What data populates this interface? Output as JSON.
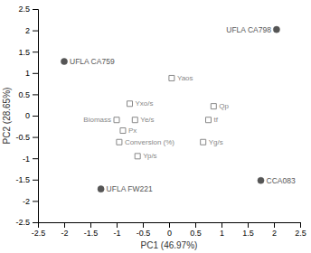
{
  "chart_data": {
    "type": "scatter",
    "xlabel": "PC1 (46.97%)",
    "ylabel": "PC2 (28.65%)",
    "xlim": [
      -2.5,
      2.5
    ],
    "ylim": [
      -2.5,
      2.5
    ],
    "xticks": [
      -2.5,
      -2,
      -1.5,
      -1,
      -0.5,
      0,
      0.5,
      1,
      1.5,
      2,
      2.5
    ],
    "yticks": [
      -2.5,
      -2,
      -1.5,
      -1,
      -0.5,
      0,
      0.5,
      1,
      1.5,
      2,
      2.5
    ],
    "series": [
      {
        "color": "#555555",
        "marker": "circle",
        "labels": [
          "UFLA CA798",
          "UFLA CA759",
          "UFLA FW221",
          "CCA083"
        ],
        "x": [
          2.05,
          -2.0,
          -1.3,
          1.75
        ],
        "values": [
          2.02,
          1.27,
          -1.72,
          -1.52
        ]
      },
      {
        "color": "#888888",
        "marker": "square-open",
        "labels": [
          "Yaos",
          "Qp",
          "tf",
          "Yg/s",
          "Yxo/s",
          "Biomass",
          "Ye/s",
          "Px",
          "Conversion (%)",
          "Yp/s"
        ],
        "x": [
          0.05,
          0.85,
          0.75,
          0.65,
          -0.75,
          -1.0,
          -0.65,
          -0.88,
          -0.95,
          -0.6
        ],
        "values": [
          0.88,
          0.22,
          -0.1,
          -0.62,
          0.28,
          -0.1,
          -0.1,
          -0.35,
          -0.62,
          -0.95
        ]
      }
    ]
  }
}
